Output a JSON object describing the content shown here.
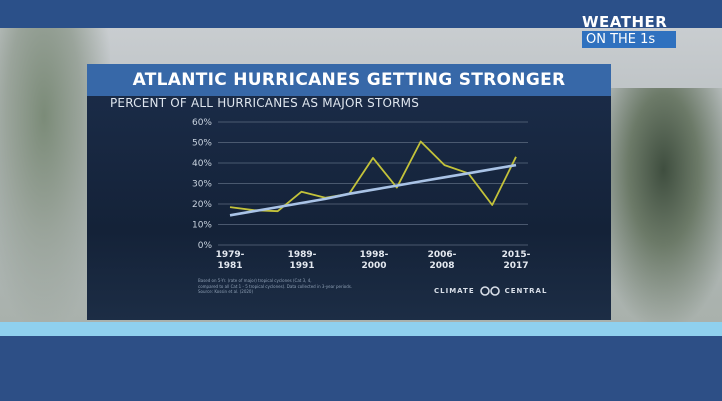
{
  "brand": {
    "line1": "WEATHER",
    "line2": "ON THE 1s"
  },
  "panel": {
    "title": "ATLANTIC HURRICANES GETTING STRONGER"
  },
  "chart_data": {
    "type": "line",
    "title": "ATLANTIC HURRICANES GETTING STRONGER",
    "subtitle": "PERCENT OF ALL HURRICANES AS MAJOR STORMS",
    "xlabel": "",
    "ylabel": "",
    "ylim": [
      0,
      60
    ],
    "yticks": [
      "0%",
      "10%",
      "20%",
      "30%",
      "40%",
      "50%",
      "60%"
    ],
    "xtick_labels": [
      {
        "line1": "1979-",
        "line2": "1981"
      },
      {
        "line1": "1989-",
        "line2": "1991"
      },
      {
        "line1": "1998-",
        "line2": "2000"
      },
      {
        "line1": "2006-",
        "line2": "2008"
      },
      {
        "line1": "2015-",
        "line2": "2017"
      }
    ],
    "x": [
      "1979-1981",
      "1982-1984",
      "1985-1987",
      "1988-1990",
      "1991-1993",
      "1994-1996",
      "1997-1999",
      "2000-2002",
      "2003-2005",
      "2006-2008",
      "2009-2011",
      "2012-2014",
      "2015-2017"
    ],
    "series": [
      {
        "values": [
          18.5,
          17,
          16.5,
          26,
          23,
          25,
          42.5,
          28,
          50.5,
          39,
          35,
          19.5,
          43
        ],
        "color": "#c3c23a"
      },
      {
        "values": [
          14.5,
          16.5,
          18.5,
          20.5,
          22.5,
          25,
          27,
          29,
          31,
          33,
          35,
          37,
          39
        ],
        "color": "#a9c3e6"
      }
    ],
    "grid": true,
    "legend": "none"
  },
  "footnote": {
    "lines": [
      "Based on 5-Yr. (rate of major) tropical cyclones (Cat 3, 4,",
      "compared to all Cat 1 - 5 tropical cyclones). Data collected in 3-year periods.",
      "Source: Kossin et al. (2020)"
    ]
  },
  "logo": {
    "left": "CLIMATE",
    "right": "CENTRAL"
  },
  "colors": {
    "panel_title_bg": "#3768a8",
    "panel_bg": "#12213a",
    "actual_line": "#c3c23a",
    "trend_line": "#a9c3e6",
    "blue_bar": "#8fd0ee",
    "brand_bg": "#2f71bf"
  }
}
